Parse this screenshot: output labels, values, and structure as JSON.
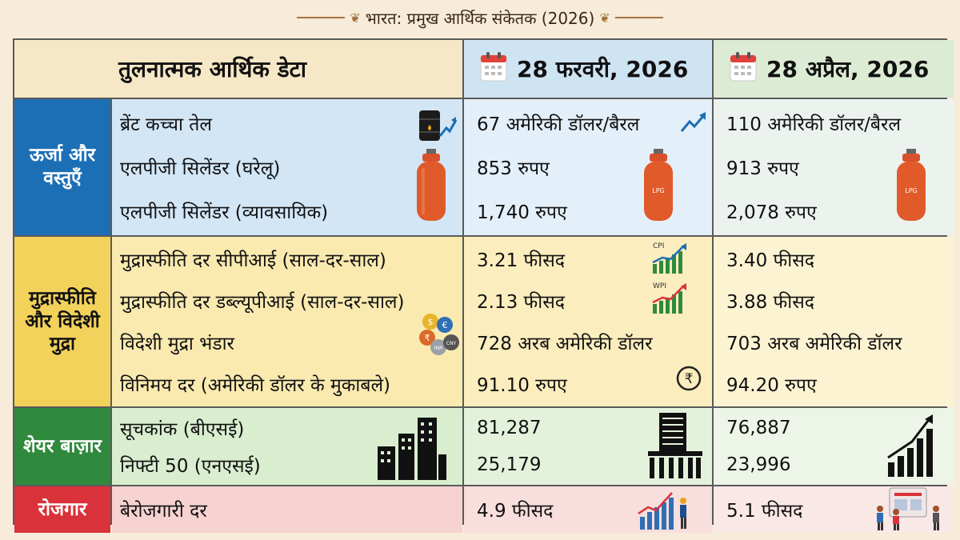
{
  "header_title": "भारत: प्रमुख आर्थिक संकेतक (2026)",
  "table": {
    "corner_label": "तुलनात्मक आर्थिक डेटा",
    "date_feb": "28 फरवरी, 2026",
    "date_apr": "28 अप्रैल, 2026"
  },
  "sections": {
    "energy": {
      "label": "ऊर्जा और वस्तुएँ",
      "items": [
        "ब्रेंट कच्चा तेल",
        "एलपीजी सिलेंडर (घरेलू)",
        "एलपीजी सिलेंडर (व्यावसायिक)"
      ],
      "feb": [
        "67 अमेरिकी डॉलर/बैरल",
        "853 रुपए",
        "1,740 रुपए"
      ],
      "apr": [
        "110 अमेरिकी डॉलर/बैरल",
        "913 रुपए",
        "2,078 रुपए"
      ]
    },
    "inflation": {
      "label": "मुद्रास्फीति और विदेशी मुद्रा",
      "items": [
        "मुद्रास्फीति दर सीपीआई (साल-दर-साल)",
        "मुद्रास्फीति दर डब्ल्यूपीआई (साल-दर-साल)",
        "विदेशी मुद्रा भंडार",
        "विनिमय दर (अमेरिकी डॉलर के मुकाबले)"
      ],
      "feb": [
        "3.21 फीसद",
        "2.13 फीसद",
        "728 अरब अमेरिकी डॉलर",
        "91.10 रुपए"
      ],
      "apr": [
        "3.40 फीसद",
        "3.88 फीसद",
        "703 अरब अमेरिकी डॉलर",
        "94.20 रुपए"
      ]
    },
    "share": {
      "label": "शेयर बाज़ार",
      "items": [
        "सूचकांक (बीएसई)",
        "निफ्टी 50 (एनएसई)"
      ],
      "feb": [
        "81,287",
        "25,179"
      ],
      "apr": [
        "76,887",
        "23,996"
      ]
    },
    "employment": {
      "label": "रोजगार",
      "items": [
        "बेरोजगारी दर"
      ],
      "feb": [
        "4.9 फीसद"
      ],
      "apr": [
        "5.1 फीसद"
      ]
    }
  },
  "icon_labels": {
    "lpg": "LPG",
    "cpi": "CPI",
    "wpi": "WPI",
    "currency": [
      "$",
      "€",
      "₹",
      "INR",
      "CNY"
    ]
  },
  "colors": {
    "energy": "#1d6fb5",
    "inflation": "#f2d25a",
    "share": "#2f8a3d",
    "employment": "#d9323a"
  }
}
